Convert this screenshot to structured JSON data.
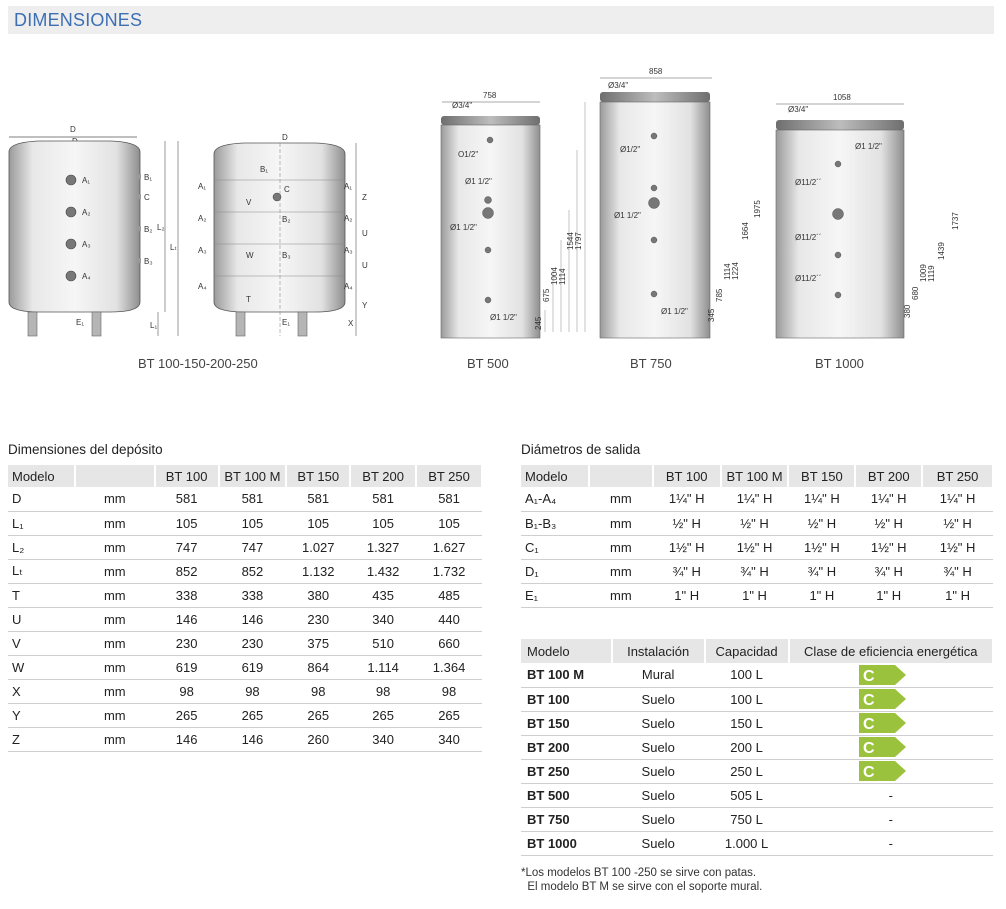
{
  "header": {
    "title": "DIMENSIONES"
  },
  "drawings": {
    "small": {
      "caption": "BT 100-150-200-250",
      "labels": {
        "D": "D",
        "D1": "D₁",
        "A1": "A₁",
        "A2": "A₂",
        "A3": "A₃",
        "A4": "A₄",
        "B1": "B₁",
        "B2": "B₂",
        "B3": "B₃",
        "C": "C",
        "E1": "E₁",
        "L1": "L₁",
        "L2": "L₂",
        "Lt": "Lₜ",
        "V": "V",
        "W": "W",
        "T": "T",
        "Z": "Z",
        "U": "U",
        "Y": "Y",
        "X": "X"
      }
    },
    "bt500": {
      "caption": "BT 500",
      "width": "758",
      "top": "Ø3/4\"",
      "c1": "O1/2\"",
      "o1": "Ø1 1/2\"",
      "o2": "Ø1 1/2\"",
      "o3": "Ø1 1/2\"",
      "dims": [
        "245",
        "675",
        "1004",
        "1114",
        "1544",
        "1797"
      ]
    },
    "bt750": {
      "caption": "BT 750",
      "width": "858",
      "top": "Ø3/4\"",
      "c1": "Ø1/2\"",
      "o1": "Ø1 1/2\"",
      "o2": "Ø1 1/2\"",
      "dims": [
        "345",
        "785",
        "1114",
        "1224",
        "1664",
        "1975"
      ]
    },
    "bt1000": {
      "caption": "BT 1000",
      "width": "1058",
      "top": "Ø3/4\"",
      "o0": "Ø1 1/2\"",
      "o1": "Ø11/2´´",
      "o2": "Ø11/2´´",
      "o3": "Ø11/2´´",
      "dims": [
        "380",
        "680",
        "1009",
        "1119",
        "1439",
        "1737"
      ]
    }
  },
  "dim_table": {
    "title": "Dimensiones del depósito",
    "headers": [
      "Modelo",
      "",
      "BT 100",
      "BT 100 M",
      "BT 150",
      "BT 200",
      "BT 250"
    ],
    "rows": [
      [
        "D",
        "mm",
        "581",
        "581",
        "581",
        "581",
        "581"
      ],
      [
        "L₁",
        "mm",
        "105",
        "105",
        "105",
        "105",
        "105"
      ],
      [
        "L₂",
        "mm",
        "747",
        "747",
        "1.027",
        "1.327",
        "1.627"
      ],
      [
        "Lₜ",
        "mm",
        "852",
        "852",
        "1.132",
        "1.432",
        "1.732"
      ],
      [
        "T",
        "mm",
        "338",
        "338",
        "380",
        "435",
        "485"
      ],
      [
        "U",
        "mm",
        "146",
        "146",
        "230",
        "340",
        "440"
      ],
      [
        "V",
        "mm",
        "230",
        "230",
        "375",
        "510",
        "660"
      ],
      [
        "W",
        "mm",
        "619",
        "619",
        "864",
        "1.114",
        "1.364"
      ],
      [
        "X",
        "mm",
        "98",
        "98",
        "98",
        "98",
        "98"
      ],
      [
        "Y",
        "mm",
        "265",
        "265",
        "265",
        "265",
        "265"
      ],
      [
        "Z",
        "mm",
        "146",
        "146",
        "260",
        "340",
        "340"
      ]
    ]
  },
  "out_table": {
    "title": "Diámetros de salida",
    "headers": [
      "Modelo",
      "",
      "BT 100",
      "BT 100 M",
      "BT 150",
      "BT 200",
      "BT 250"
    ],
    "rows": [
      [
        "A₁-A₄",
        "mm",
        "1¼\" H",
        "1¼\" H",
        "1¼\" H",
        "1¼\" H",
        "1¼\" H"
      ],
      [
        "B₁-B₃",
        "mm",
        "½\" H",
        "½\" H",
        "½\" H",
        "½\" H",
        "½\" H"
      ],
      [
        "C₁",
        "mm",
        "1½\" H",
        "1½\" H",
        "1½\" H",
        "1½\" H",
        "1½\" H"
      ],
      [
        "D₁",
        "mm",
        "¾\" H",
        "¾\" H",
        "¾\" H",
        "¾\" H",
        "¾\" H"
      ],
      [
        "E₁",
        "mm",
        "1\" H",
        "1\" H",
        "1\" H",
        "1\" H",
        "1\" H"
      ]
    ]
  },
  "eff_table": {
    "headers": [
      "Modelo",
      "Instalación",
      "Capacidad",
      "Clase de eficiencia energética"
    ],
    "badge_color": "#9bc23c",
    "rows": [
      [
        "BT 100 M",
        "Mural",
        "100 L",
        "C"
      ],
      [
        "BT 100",
        "Suelo",
        "100 L",
        "C"
      ],
      [
        "BT 150",
        "Suelo",
        "150 L",
        "C"
      ],
      [
        "BT 200",
        "Suelo",
        "200 L",
        "C"
      ],
      [
        "BT 250",
        "Suelo",
        "250 L",
        "C"
      ],
      [
        "BT 500",
        "Suelo",
        "505 L",
        "-"
      ],
      [
        "BT 750",
        "Suelo",
        "750 L",
        "-"
      ],
      [
        "BT 1000",
        "Suelo",
        "1.000 L",
        "-"
      ]
    ]
  },
  "footnote": {
    "line1": "*Los modelos BT 100 -250  se sirve con patas.",
    "line2": "  El modelo BT M se sirve con el soporte mural."
  }
}
